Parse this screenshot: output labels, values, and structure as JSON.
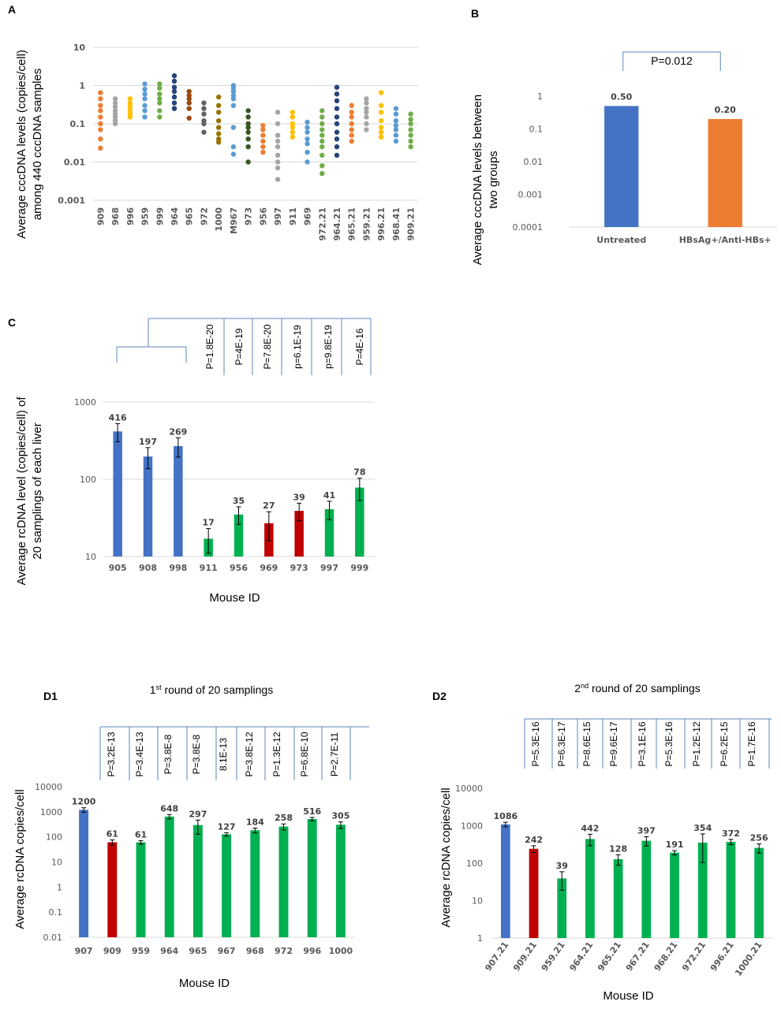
{
  "chart_data": [
    {
      "id": "A",
      "panel_label": "A",
      "type": "scatter",
      "scale": "log",
      "ylabel": "Average  cccDNA levels (copies/cell) among 440 cccDNA samples",
      "ylabel_lines": [
        "Average  cccDNA levels (copies/cell)",
        "among 440 cccDNA samples"
      ],
      "yticks": [
        "10",
        "1",
        "0.1",
        "0.01",
        "0.001"
      ],
      "ylim": [
        0.001,
        10
      ],
      "categories": [
        "909",
        "968",
        "996",
        "959",
        "999",
        "964",
        "965",
        "972",
        "1000",
        "M967",
        "973",
        "956",
        "997",
        "911",
        "969",
        "972.21",
        "964.21",
        "965.21",
        "959.21",
        "996.21",
        "968.41",
        "909.21"
      ],
      "colors": [
        "#ed7d31",
        "#a5a5a5",
        "#ffc000",
        "#5b9bd5",
        "#70ad47",
        "#264478",
        "#9e480e",
        "#636363",
        "#997300",
        "#5b9bd5",
        "#375623",
        "#ed7d31",
        "#a5a5a5",
        "#ffc000",
        "#5b9bd5",
        "#70ad47",
        "#264478",
        "#ed7d31",
        "#a5a5a5",
        "#ffc000",
        "#5b9bd5",
        "#70ad47"
      ],
      "values": [
        [
          0.65,
          0.45,
          0.3,
          0.22,
          0.15,
          0.1,
          0.07,
          0.04,
          0.023
        ],
        [
          0.45,
          0.35,
          0.28,
          0.22,
          0.18,
          0.15,
          0.12,
          0.1
        ],
        [
          0.45,
          0.35,
          0.3,
          0.25,
          0.2,
          0.17,
          0.15
        ],
        [
          1.1,
          0.8,
          0.6,
          0.45,
          0.3,
          0.22,
          0.15
        ],
        [
          1.1,
          0.85,
          0.6,
          0.45,
          0.35,
          0.22,
          0.15
        ],
        [
          1.8,
          1.3,
          0.9,
          0.7,
          0.5,
          0.35,
          0.25
        ],
        [
          0.7,
          0.55,
          0.45,
          0.35,
          0.25,
          0.14
        ],
        [
          0.35,
          0.25,
          0.18,
          0.12,
          0.1,
          0.06
        ],
        [
          0.5,
          0.3,
          0.2,
          0.12,
          0.08,
          0.055,
          0.04,
          0.033
        ],
        [
          1.0,
          0.85,
          0.7,
          0.55,
          0.45,
          0.3,
          0.08,
          0.025,
          0.016
        ],
        [
          0.22,
          0.15,
          0.1,
          0.08,
          0.06,
          0.04,
          0.025,
          0.01
        ],
        [
          0.09,
          0.07,
          0.05,
          0.035,
          0.025,
          0.018
        ],
        [
          0.2,
          0.1,
          0.05,
          0.035,
          0.025,
          0.015,
          0.01,
          0.007,
          0.0035
        ],
        [
          0.2,
          0.15,
          0.1,
          0.08,
          0.06,
          0.045
        ],
        [
          0.11,
          0.08,
          0.06,
          0.04,
          0.03,
          0.018,
          0.01
        ],
        [
          0.22,
          0.15,
          0.1,
          0.07,
          0.05,
          0.035,
          0.025,
          0.015,
          0.008,
          0.005
        ],
        [
          0.9,
          0.6,
          0.4,
          0.25,
          0.15,
          0.1,
          0.06,
          0.04,
          0.025,
          0.015
        ],
        [
          0.3,
          0.2,
          0.15,
          0.1,
          0.07,
          0.05,
          0.035
        ],
        [
          0.45,
          0.35,
          0.25,
          0.2,
          0.15,
          0.1,
          0.07
        ],
        [
          0.65,
          0.3,
          0.2,
          0.12,
          0.08,
          0.06,
          0.045
        ],
        [
          0.25,
          0.18,
          0.12,
          0.09,
          0.07,
          0.05,
          0.035
        ],
        [
          0.18,
          0.13,
          0.1,
          0.07,
          0.05,
          0.035,
          0.025
        ]
      ]
    },
    {
      "id": "B",
      "panel_label": "B",
      "type": "bar",
      "scale": "log",
      "ylabel": "Average  cccDNA levels between two groups",
      "ylabel_lines": [
        "Average  cccDNA levels between",
        "two groups"
      ],
      "yticks": [
        "1",
        "0.1",
        "0.01",
        "0.001",
        "0.0001"
      ],
      "ylim": [
        0.0001,
        1
      ],
      "categories": [
        "Untreated",
        "HBsAg+/Anti-HBs+"
      ],
      "values": [
        0.5,
        0.2
      ],
      "data_labels": [
        "0.50",
        "0.20"
      ],
      "colors": [
        "#4472c4",
        "#ed7d31"
      ],
      "pvalue": "P=0.012"
    },
    {
      "id": "C",
      "panel_label": "C",
      "type": "bar",
      "scale": "log",
      "ylabel": "Average rcDNA level (copies/cell) of 20 samplings of each liver",
      "ylabel_lines": [
        "Average rcDNA level (copies/cell) of",
        "20 samplings of each liver"
      ],
      "xlabel": "Mouse  ID",
      "yticks": [
        "1000",
        "100",
        "10"
      ],
      "ylim": [
        10,
        1000
      ],
      "categories": [
        "905",
        "908",
        "998",
        "911",
        "956",
        "969",
        "973",
        "997",
        "999"
      ],
      "values": [
        416,
        197,
        269,
        17,
        35,
        27,
        39,
        41,
        78
      ],
      "errors": [
        110,
        60,
        75,
        6,
        9,
        11,
        10,
        11,
        25
      ],
      "data_labels": [
        "416",
        "197",
        "269",
        "17",
        "35",
        "27",
        "39",
        "41",
        "78"
      ],
      "colors": [
        "#4472c4",
        "#4472c4",
        "#4472c4",
        "#00b050",
        "#00b050",
        "#c00000",
        "#c00000",
        "#00b050",
        "#00b050"
      ],
      "pvalues": [
        "P=1.8E-20",
        "P=4E-19",
        "P=7.8E-20",
        "p=6.1E-19",
        "p=9.8E-19",
        "P=4E-16"
      ]
    },
    {
      "id": "D1",
      "panel_label": "D1",
      "type": "bar",
      "scale": "log",
      "title_pre": "1",
      "title_sup": "st",
      "title_post": " round of 20 samplings",
      "ylabel": "Average  rcDNA copies/cell",
      "xlabel": "Mouse ID",
      "yticks": [
        "10000",
        "1000",
        "100",
        "10",
        "1",
        "0.1",
        "0.01"
      ],
      "ylim": [
        0.01,
        10000
      ],
      "categories": [
        "907",
        "909",
        "959",
        "964",
        "965",
        "967",
        "968",
        "972",
        "996",
        "1000"
      ],
      "values": [
        1200,
        61,
        61,
        648,
        297,
        127,
        184,
        258,
        516,
        305
      ],
      "errors": [
        250,
        15,
        10,
        130,
        170,
        20,
        40,
        70,
        80,
        90
      ],
      "data_labels": [
        "1200",
        "61",
        "61",
        "648",
        "297",
        "127",
        "184",
        "258",
        "516",
        "305"
      ],
      "colors": [
        "#4472c4",
        "#c00000",
        "#00b050",
        "#00b050",
        "#00b050",
        "#00b050",
        "#00b050",
        "#00b050",
        "#00b050",
        "#00b050"
      ],
      "pvalues": [
        "P=3.2E-13",
        "P=3.4E-13",
        "P=3.8E-8",
        "P=3.8E-8",
        "8.1E-13",
        "P=3.8E-12",
        "P=1.3E-12",
        "P=6.8E-10",
        "P=2.7E-11"
      ]
    },
    {
      "id": "D2",
      "panel_label": "D2",
      "type": "bar",
      "scale": "log",
      "title_pre": "2",
      "title_sup": "nd",
      "title_post": " round of 20 samplings",
      "ylabel": "Average  rcDNA copies/cell",
      "xlabel": "Mouse ID",
      "yticks": [
        "10000",
        "1000",
        "100",
        "10",
        "1"
      ],
      "ylim": [
        1,
        10000
      ],
      "categories": [
        "907.21",
        "909.21",
        "959.21",
        "964.21",
        "965.21",
        "967.21",
        "968.21",
        "972.21",
        "996.21",
        "1000.21"
      ],
      "values": [
        1086,
        242,
        39,
        442,
        128,
        397,
        191,
        354,
        372,
        256
      ],
      "errors": [
        150,
        50,
        20,
        150,
        40,
        110,
        25,
        250,
        60,
        70
      ],
      "data_labels": [
        "1086",
        "242",
        "39",
        "442",
        "128",
        "397",
        "191",
        "354",
        "372",
        "256"
      ],
      "colors": [
        "#4472c4",
        "#c00000",
        "#00b050",
        "#00b050",
        "#00b050",
        "#00b050",
        "#00b050",
        "#00b050",
        "#00b050",
        "#00b050"
      ],
      "pvalues": [
        "P=5.3E-16",
        "P=6.3E-17",
        "P=8.6E-15",
        "P=9.6E-17",
        "P=3.1E-16",
        "P=5.3E-16",
        "P=1.2E-12",
        "P=6.2E-15",
        "P=1.7E-16"
      ]
    }
  ]
}
